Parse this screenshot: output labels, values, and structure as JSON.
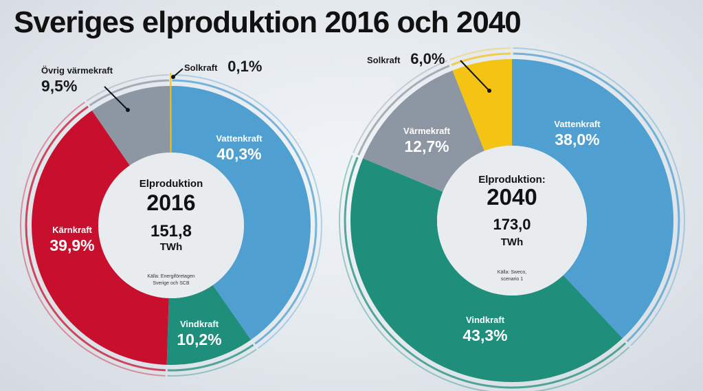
{
  "title": "Sveriges elproduktion 2016 och 2040",
  "colors": {
    "vattenkraft": "#4f9fd0",
    "vindkraft": "#1f8f7c",
    "karnkraft": "#c8102e",
    "varmekraft": "#8d97a3",
    "solkraft": "#f5c313",
    "center": "#e8ecef"
  },
  "chart_data": [
    {
      "type": "pie",
      "center_title": "Elproduktion",
      "center_year": "2016",
      "center_total": "151,8",
      "center_unit": "TWh",
      "source": [
        "Källa: Energiföretagen",
        "Sverige och SCB"
      ],
      "slices": [
        {
          "name": "Vattenkraft",
          "value": 40.3,
          "label": "40,3%",
          "color_key": "vattenkraft"
        },
        {
          "name": "Vindkraft",
          "value": 10.2,
          "label": "10,2%",
          "color_key": "vindkraft"
        },
        {
          "name": "Kärnkraft",
          "value": 39.9,
          "label": "39,9%",
          "color_key": "karnkraft"
        },
        {
          "name": "Övrig värmekraft",
          "value": 9.5,
          "label": "9,5%",
          "color_key": "varmekraft"
        },
        {
          "name": "Solkraft",
          "value": 0.1,
          "label": "0,1%",
          "color_key": "solkraft"
        }
      ]
    },
    {
      "type": "pie",
      "center_title": "Elproduktion:",
      "center_year": "2040",
      "center_total": "173,0",
      "center_unit": "TWh",
      "source": [
        "Källa: Sweco,",
        "scenario 1"
      ],
      "slices": [
        {
          "name": "Vattenkraft",
          "value": 38.0,
          "label": "38,0%",
          "color_key": "vattenkraft"
        },
        {
          "name": "Vindkraft",
          "value": 43.3,
          "label": "43,3%",
          "color_key": "vindkraft"
        },
        {
          "name": "Värmekraft",
          "value": 12.7,
          "label": "12,7%",
          "color_key": "varmekraft"
        },
        {
          "name": "Solkraft",
          "value": 6.0,
          "label": "6,0%",
          "color_key": "solkraft"
        }
      ]
    }
  ]
}
